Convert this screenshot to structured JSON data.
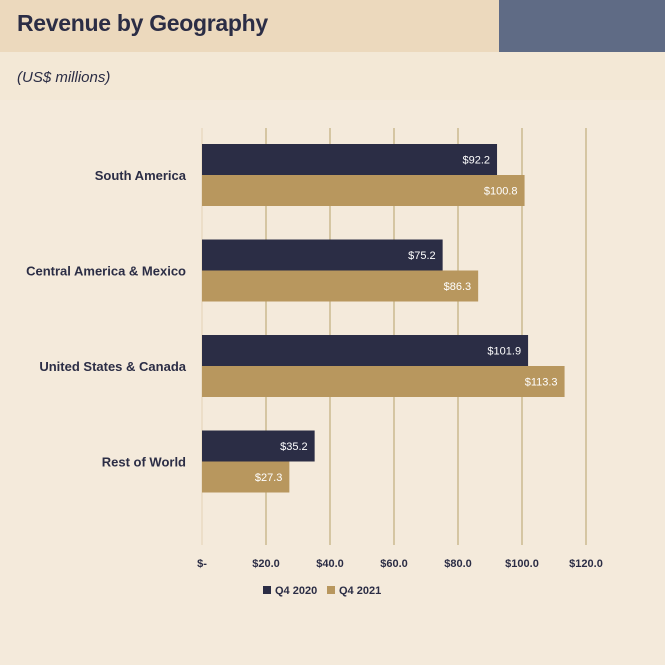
{
  "page": {
    "title": "Revenue by Geography",
    "subtitle": "(US$ millions)"
  },
  "colors": {
    "header_bg": "#ecd9bd",
    "header_accent": "#5f6b85",
    "background": "#f3e8d6",
    "gridline": "#c8b68a",
    "text": "#2b2d45"
  },
  "chart_data": {
    "type": "bar",
    "orientation": "horizontal",
    "categories": [
      "South America",
      "Central America & Mexico",
      "United States & Canada",
      "Rest of World"
    ],
    "series": [
      {
        "name": "Q4 2020",
        "color": "#2b2d45",
        "values": [
          92.2,
          75.2,
          101.9,
          35.2
        ],
        "labels": [
          "$92.2",
          "$75.2",
          "$101.9",
          "$35.2"
        ]
      },
      {
        "name": "Q4 2021",
        "color": "#b8975e",
        "values": [
          100.8,
          86.3,
          113.3,
          27.3
        ],
        "labels": [
          "$100.8",
          "$86.3",
          "$113.3",
          "$27.3"
        ]
      }
    ],
    "xlim": [
      0,
      120
    ],
    "xticks": [
      0,
      20,
      40,
      60,
      80,
      100,
      120
    ],
    "xtick_labels": [
      "$-",
      "$20.0",
      "$40.0",
      "$60.0",
      "$80.0",
      "$100.0",
      "$120.0"
    ],
    "grid": true,
    "legend": "bottom"
  }
}
